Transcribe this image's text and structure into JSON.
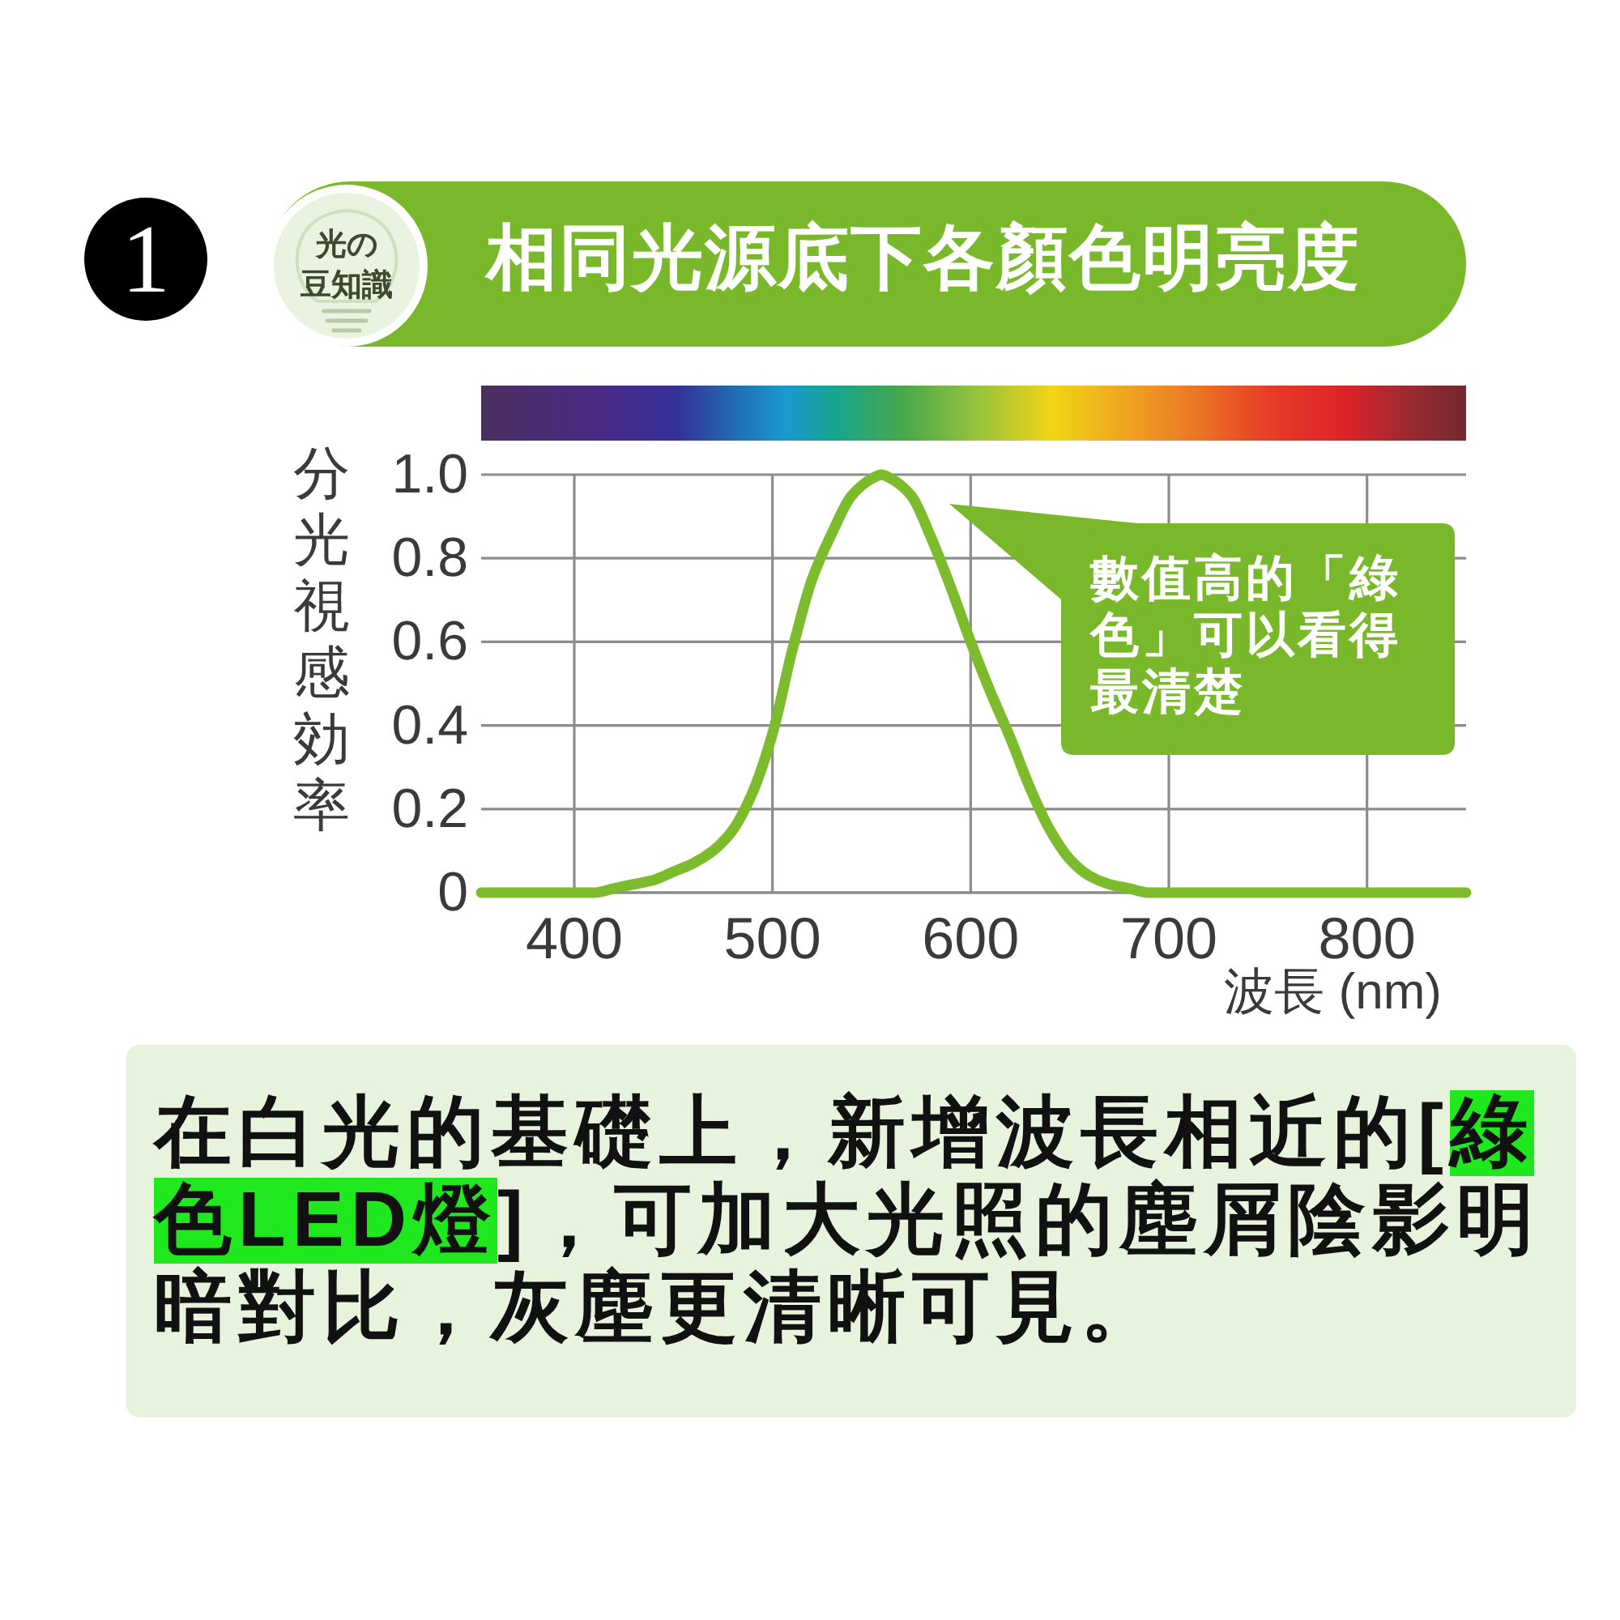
{
  "chart_data": {
    "type": "line",
    "title": "相同光源底下各顏色明亮度",
    "xlabel": "波長 (nm)",
    "ylabel": "分光視感効率",
    "annotations": [
      "1",
      "光の",
      "豆知識",
      "數值高的「綠色」可以看得最清楚",
      "在白光的基礎上，新增波長相近的[綠色LED燈]，可加大光照的塵屑陰影明暗對比，灰塵更清晰可見。"
    ],
    "x": [
      353,
      380,
      400,
      410,
      420,
      430,
      440,
      450,
      460,
      470,
      480,
      490,
      500,
      510,
      520,
      530,
      540,
      550,
      555,
      560,
      570,
      580,
      590,
      600,
      610,
      620,
      630,
      640,
      650,
      660,
      670,
      680,
      690,
      700,
      750,
      800,
      850
    ],
    "series": [
      {
        "color": "#7bbb2c",
        "values": [
          0,
          0,
          0,
          0,
          0.01,
          0.02,
          0.03,
          0.05,
          0.07,
          0.1,
          0.15,
          0.24,
          0.38,
          0.58,
          0.75,
          0.86,
          0.95,
          0.99,
          1.0,
          0.99,
          0.95,
          0.85,
          0.73,
          0.6,
          0.48,
          0.37,
          0.25,
          0.15,
          0.08,
          0.04,
          0.02,
          0.01,
          0,
          0,
          0,
          0,
          0
        ]
      }
    ],
    "xlim": [
      353,
      850
    ],
    "ylim": [
      0,
      1
    ],
    "xticks": [
      400,
      500,
      600,
      700,
      800
    ],
    "yticks": [
      0,
      0.2,
      0.4,
      0.6,
      0.8,
      {
        "value": 1,
        "label": "1.0"
      }
    ],
    "grid": true,
    "marker": "none",
    "line_style": "solid"
  }
}
